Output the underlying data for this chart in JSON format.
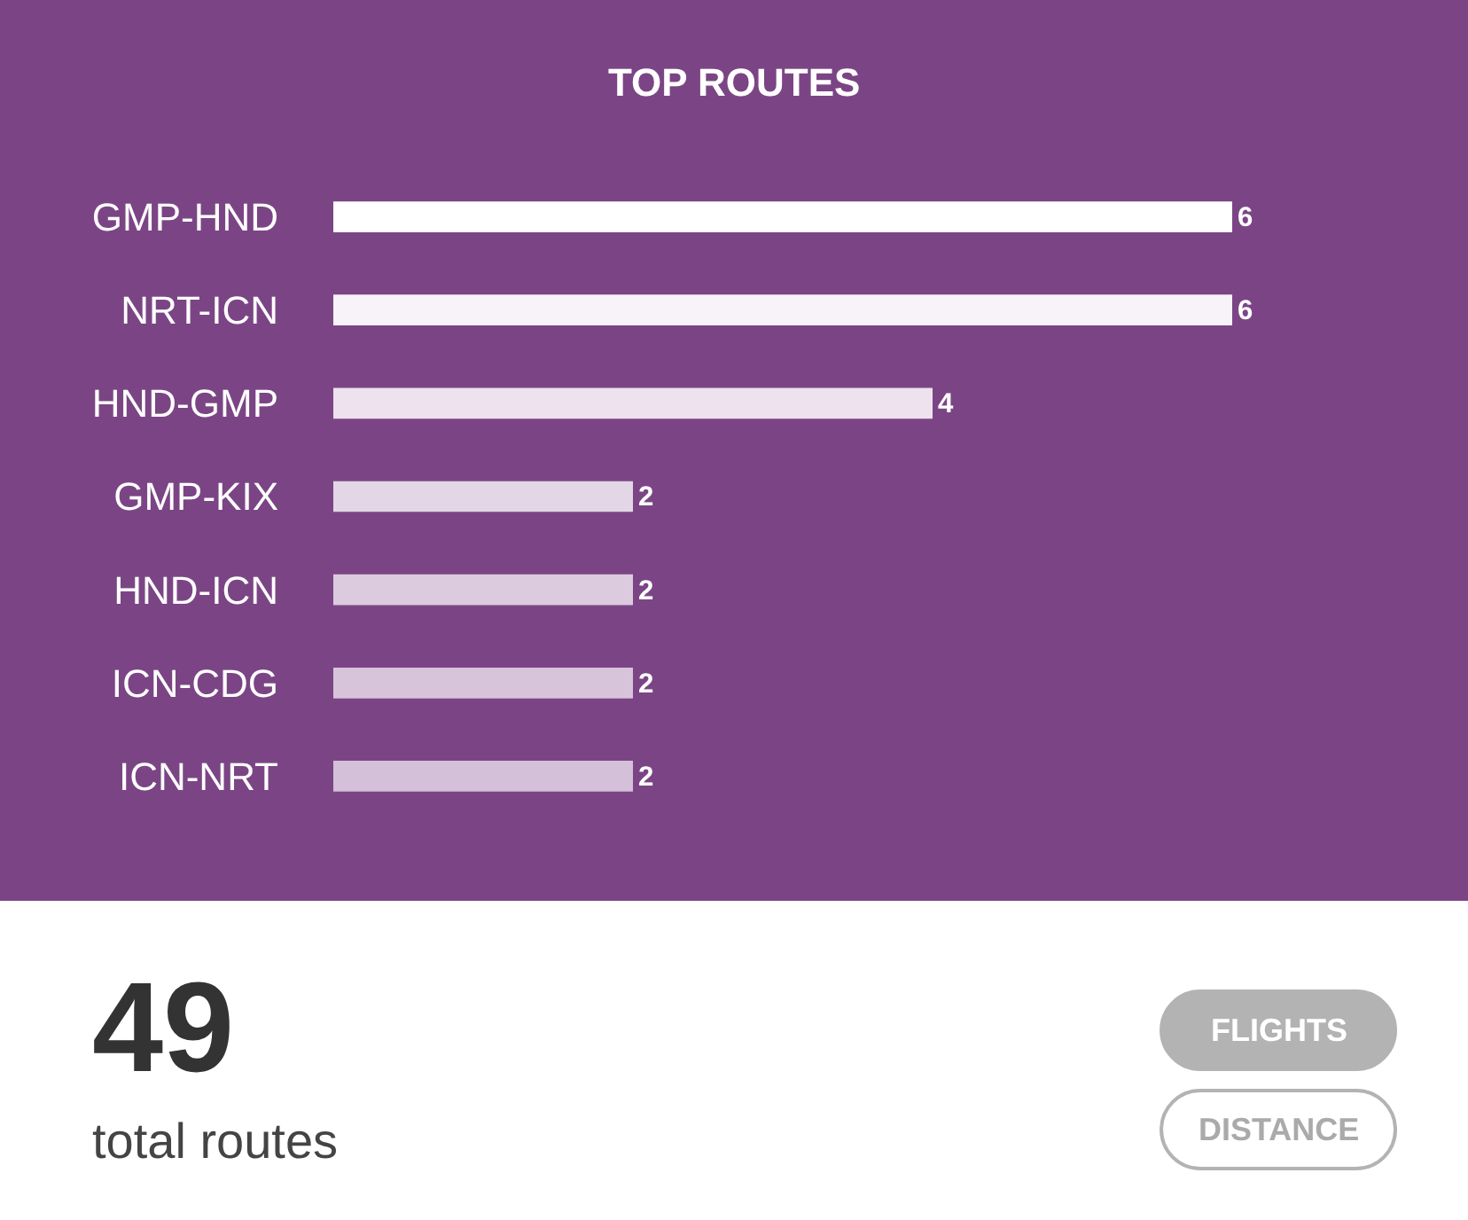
{
  "chart_data": [
    {
      "type": "bar",
      "orientation": "horizontal",
      "title": "TOP ROUTES",
      "categories": [
        "GMP-HND",
        "NRT-ICN",
        "HND-GMP",
        "GMP-KIX",
        "HND-ICN",
        "ICN-CDG",
        "ICN-NRT"
      ],
      "values": [
        6,
        6,
        4,
        2,
        2,
        2,
        2
      ],
      "colors": [
        "#ffffff",
        "#f8f3f8",
        "#ede2ee",
        "#e3d6e6",
        "#dccbdf",
        "#d7c4da",
        "#d4c0d8"
      ],
      "xlim": [
        0,
        6
      ],
      "tick_labels": "y",
      "data_labels": true,
      "grid": false
    },
    {
      "type": "other",
      "annotations": [
        "49",
        "total routes",
        "FLIGHTS",
        "DISTANCE"
      ]
    }
  ]
}
